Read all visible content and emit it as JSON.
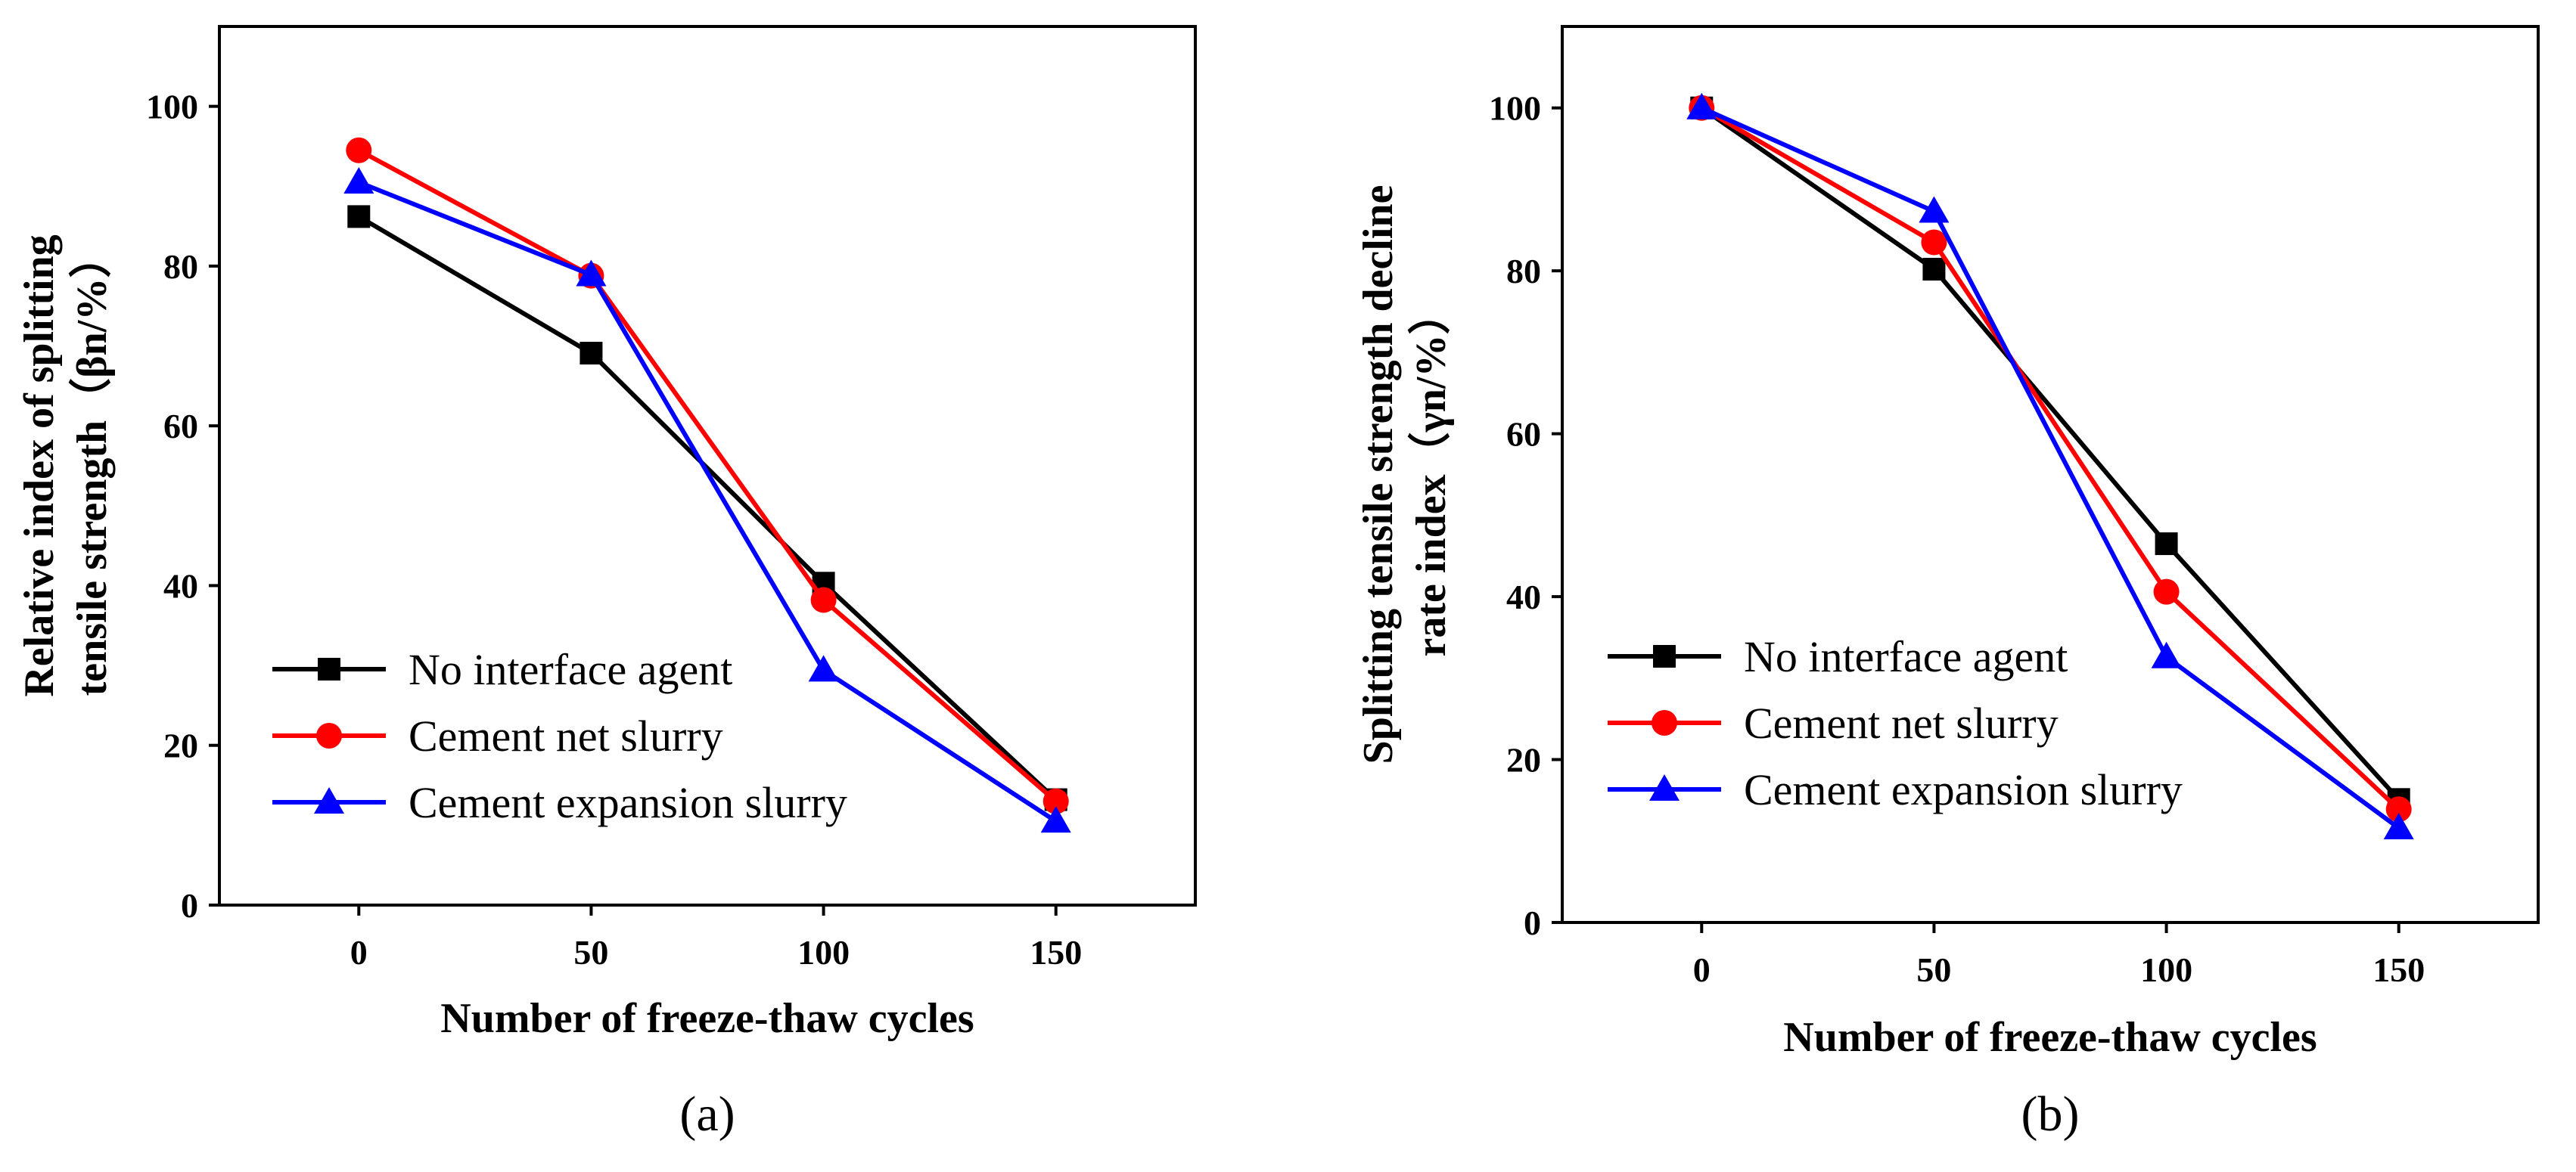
{
  "chart_data": [
    {
      "type": "line",
      "panel_label": "(a)",
      "x": [
        0,
        50,
        100,
        150
      ],
      "xticks": [
        "0",
        "50",
        "100",
        "150"
      ],
      "xlim": [
        -30,
        180
      ],
      "ylim": [
        0,
        110
      ],
      "yticks": [
        "0",
        "20",
        "40",
        "60",
        "80",
        "100"
      ],
      "xlabel": "Number of freeze-thaw cycles",
      "ylabel_lines": [
        "Relative index of splitting",
        "tensile strength（βn/%）"
      ],
      "legend_position": "bottom-left",
      "series": [
        {
          "name": "No interface agent",
          "values": [
            86.2,
            69.1,
            40.3,
            13.2
          ],
          "color": "#000000",
          "marker": "square"
        },
        {
          "name": "Cement net slurry",
          "values": [
            94.5,
            78.8,
            38.2,
            13.0
          ],
          "color": "#ff0000",
          "marker": "circle"
        },
        {
          "name": "Cement expansion slurry",
          "values": [
            90.5,
            78.9,
            29.4,
            10.5
          ],
          "color": "#0000ff",
          "marker": "triangle"
        }
      ]
    },
    {
      "type": "line",
      "panel_label": "(b)",
      "x": [
        0,
        50,
        100,
        150
      ],
      "xticks": [
        "0",
        "50",
        "100",
        "150"
      ],
      "xlim": [
        -30,
        180
      ],
      "ylim": [
        0,
        110
      ],
      "yticks": [
        "0",
        "20",
        "40",
        "60",
        "80",
        "100"
      ],
      "xlabel": "Number of freeze-thaw cycles",
      "ylabel_lines": [
        "Splitting tensile strength decline",
        "rate index（γn/%）"
      ],
      "legend_position": "bottom-left",
      "series": [
        {
          "name": "No interface agent",
          "values": [
            100,
            80.2,
            46.5,
            15.1
          ],
          "color": "#000000",
          "marker": "square"
        },
        {
          "name": "Cement net slurry",
          "values": [
            100,
            83.5,
            40.6,
            13.9
          ],
          "color": "#ff0000",
          "marker": "circle"
        },
        {
          "name": "Cement expansion slurry",
          "values": [
            100,
            87.3,
            32.6,
            11.6
          ],
          "color": "#0000ff",
          "marker": "triangle"
        }
      ]
    }
  ]
}
